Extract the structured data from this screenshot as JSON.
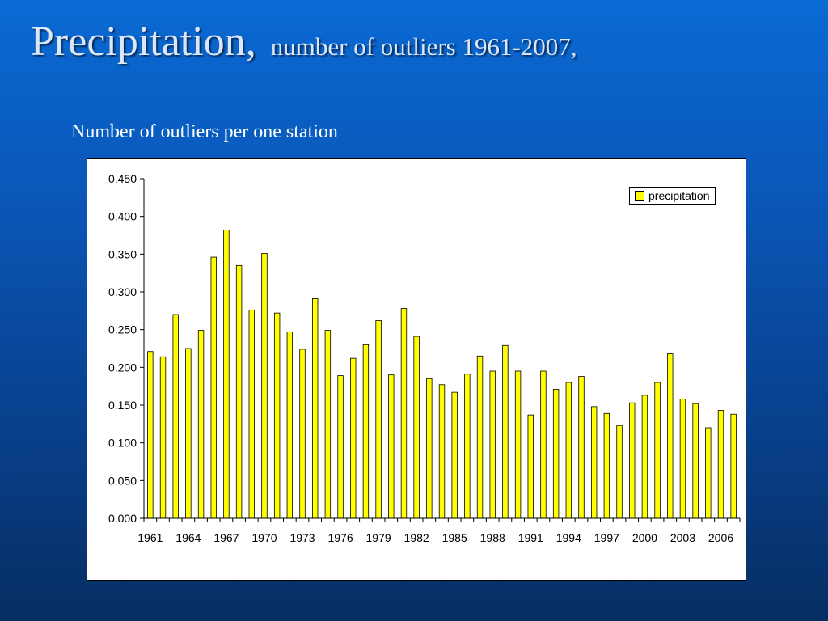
{
  "slide": {
    "title_main": "Precipitation,",
    "title_sub": "number of outliers 1961-2007,",
    "caption": "Number of outliers per one station"
  },
  "colors": {
    "bar_fill": "#ffff00",
    "bar_stroke": "#000000"
  },
  "chart_data": {
    "type": "bar",
    "title": "",
    "xlabel": "",
    "ylabel": "",
    "ylim": [
      0,
      0.45
    ],
    "yticks": [
      "0.000",
      "0.050",
      "0.100",
      "0.150",
      "0.200",
      "0.250",
      "0.300",
      "0.350",
      "0.400",
      "0.450"
    ],
    "categories": [
      1961,
      1962,
      1963,
      1964,
      1965,
      1966,
      1967,
      1968,
      1969,
      1970,
      1971,
      1972,
      1973,
      1974,
      1975,
      1976,
      1977,
      1978,
      1979,
      1980,
      1981,
      1982,
      1983,
      1984,
      1985,
      1986,
      1987,
      1988,
      1989,
      1990,
      1991,
      1992,
      1993,
      1994,
      1995,
      1996,
      1997,
      1998,
      1999,
      2000,
      2001,
      2002,
      2003,
      2004,
      2005,
      2006,
      2007
    ],
    "xtick_labels": [
      "1961",
      "1964",
      "1967",
      "1970",
      "1973",
      "1976",
      "1979",
      "1982",
      "1985",
      "1988",
      "1991",
      "1994",
      "1997",
      "2000",
      "2003",
      "2006"
    ],
    "series": [
      {
        "name": "precipitation",
        "values": [
          0.221,
          0.214,
          0.27,
          0.225,
          0.249,
          0.346,
          0.382,
          0.335,
          0.276,
          0.351,
          0.272,
          0.247,
          0.224,
          0.291,
          0.249,
          0.189,
          0.212,
          0.23,
          0.262,
          0.19,
          0.278,
          0.241,
          0.185,
          0.177,
          0.167,
          0.191,
          0.215,
          0.195,
          0.229,
          0.195,
          0.137,
          0.195,
          0.171,
          0.18,
          0.188,
          0.148,
          0.139,
          0.123,
          0.153,
          0.163,
          0.18,
          0.218,
          0.158,
          0.152,
          0.12,
          0.143,
          0.138
        ]
      }
    ],
    "legend_position": "top-right",
    "grid": false
  }
}
